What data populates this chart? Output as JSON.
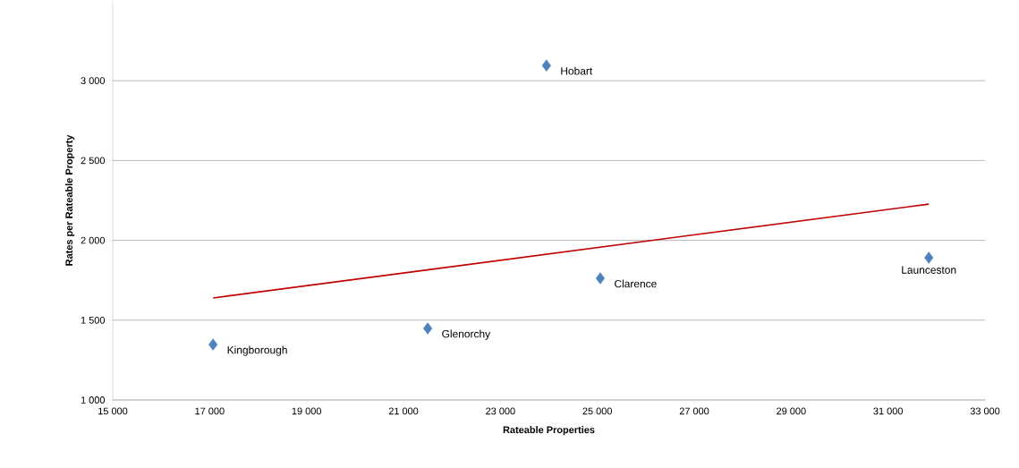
{
  "chart_data": {
    "type": "scatter",
    "xlabel": "Rateable Properties",
    "ylabel": "Rates per Rateable Property",
    "xlim": [
      15000,
      33000
    ],
    "xticks": [
      {
        "value": 15000,
        "label": "15 000"
      },
      {
        "value": 17000,
        "label": "17 000"
      },
      {
        "value": 19000,
        "label": "19 000"
      },
      {
        "value": 21000,
        "label": "21 000"
      },
      {
        "value": 23000,
        "label": "23 000"
      },
      {
        "value": 25000,
        "label": "25 000"
      },
      {
        "value": 27000,
        "label": "27 000"
      },
      {
        "value": 29000,
        "label": "29 000"
      },
      {
        "value": 31000,
        "label": "31 000"
      },
      {
        "value": 33000,
        "label": "33 000"
      }
    ],
    "ylim": [
      1000,
      3500
    ],
    "yticks": [
      {
        "value": 1000,
        "label": "1 000"
      },
      {
        "value": 1500,
        "label": "1 500"
      },
      {
        "value": 2000,
        "label": "2 000"
      },
      {
        "value": 2500,
        "label": "2 500"
      },
      {
        "value": 3000,
        "label": "3 000"
      }
    ],
    "grid": "y",
    "marker": "diamond",
    "series": [
      {
        "color": "#4f81bd",
        "x": [
          17070,
          21500,
          23950,
          25060,
          31840
        ],
        "values": [
          1347,
          1448,
          3095,
          1762,
          1891
        ]
      },
      {
        "type": "line",
        "color": "#c00000",
        "marker": "none",
        "x": [
          17070,
          31840
        ],
        "values": [
          1639,
          2227
        ]
      }
    ],
    "annotations": [
      {
        "text": "Kingborough",
        "x": 17070,
        "y": 1347
      },
      {
        "text": "Glenorchy",
        "x": 21500,
        "y": 1448
      },
      {
        "text": "Hobart",
        "x": 23950,
        "y": 3095
      },
      {
        "text": "Clarence",
        "x": 25060,
        "y": 1762
      },
      {
        "text": "Launceston",
        "x": 31840,
        "y": 1891
      }
    ]
  }
}
